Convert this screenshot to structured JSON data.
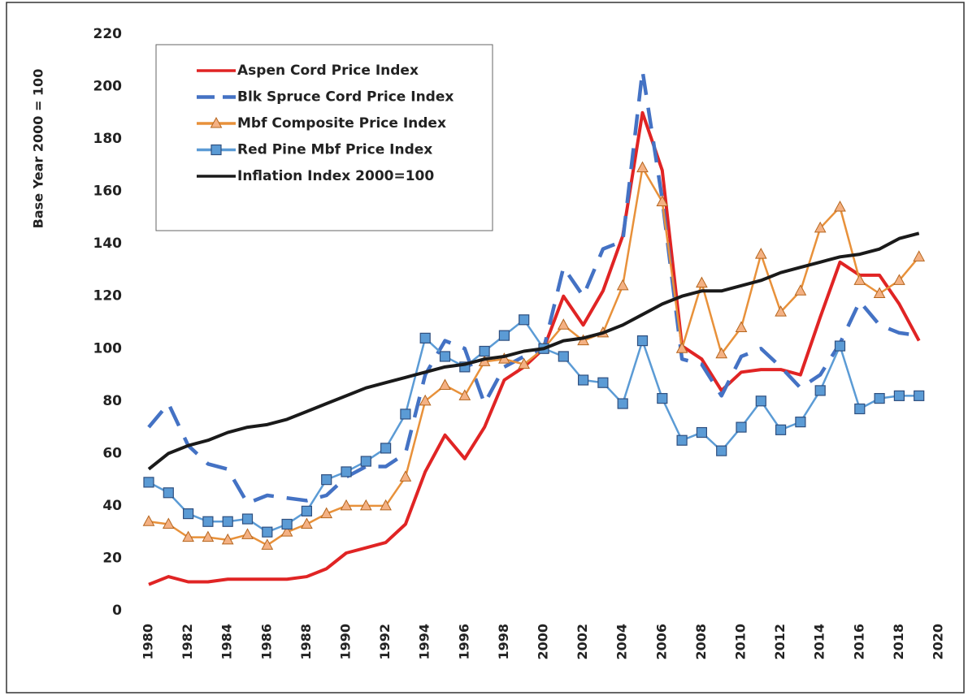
{
  "chart_data": {
    "type": "line",
    "y_label": "Base Year 2000 = 100",
    "x": [
      1980,
      1981,
      1982,
      1983,
      1984,
      1985,
      1986,
      1987,
      1988,
      1989,
      1990,
      1991,
      1992,
      1993,
      1994,
      1995,
      1996,
      1997,
      1998,
      1999,
      2000,
      2001,
      2002,
      2003,
      2004,
      2005,
      2006,
      2007,
      2008,
      2009,
      2010,
      2011,
      2012,
      2013,
      2014,
      2015,
      2016,
      2017,
      2018,
      2019
    ],
    "xlim": [
      1980,
      2020
    ],
    "xticks": [
      1980,
      1982,
      1984,
      1986,
      1988,
      1990,
      1992,
      1994,
      1996,
      1998,
      2000,
      2002,
      2004,
      2006,
      2008,
      2010,
      2012,
      2014,
      2016,
      2018,
      2020
    ],
    "ylim": [
      0,
      220
    ],
    "yticks": [
      0,
      20,
      40,
      60,
      80,
      100,
      120,
      140,
      160,
      180,
      200,
      220
    ],
    "legend": "upper-left",
    "series": [
      {
        "name": "Aspen Cord Price Index",
        "color": "#e02424",
        "line_style": "solid",
        "marker": "none",
        "values": [
          10,
          13,
          11,
          11,
          12,
          12,
          12,
          12,
          13,
          16,
          22,
          24,
          26,
          33,
          53,
          67,
          58,
          70,
          88,
          93,
          100,
          120,
          109,
          122,
          143,
          190,
          168,
          101,
          96,
          84,
          91,
          92,
          92,
          90,
          112,
          133,
          128,
          128,
          117,
          103
        ]
      },
      {
        "name": "Blk Spruce Cord Price Index",
        "color": "#4472c4",
        "line_style": "dashed",
        "marker": "none",
        "values": [
          70,
          79,
          63,
          56,
          54,
          41,
          44,
          43,
          42,
          44,
          51,
          55,
          55,
          60,
          90,
          103,
          100,
          79,
          93,
          97,
          100,
          131,
          120,
          138,
          141,
          206,
          157,
          96,
          94,
          82,
          97,
          100,
          93,
          85,
          90,
          102,
          118,
          109,
          106,
          105
        ]
      },
      {
        "name": "Mbf Composite Price Index",
        "color": "#e8913a",
        "line_style": "solid",
        "marker": "triangle",
        "values": [
          34,
          33,
          28,
          28,
          27,
          29,
          25,
          30,
          33,
          37,
          40,
          40,
          40,
          51,
          80,
          86,
          82,
          95,
          96,
          94,
          100,
          109,
          103,
          106,
          124,
          169,
          156,
          100,
          125,
          98,
          108,
          136,
          114,
          122,
          146,
          154,
          126,
          121,
          126,
          135
        ]
      },
      {
        "name": "Red Pine Mbf Price Index",
        "color": "#5b9bd5",
        "line_style": "solid",
        "marker": "square",
        "values": [
          49,
          45,
          37,
          34,
          34,
          35,
          30,
          33,
          38,
          50,
          53,
          57,
          62,
          75,
          104,
          97,
          93,
          99,
          105,
          111,
          100,
          97,
          88,
          87,
          79,
          103,
          81,
          65,
          68,
          61,
          70,
          80,
          69,
          72,
          84,
          101,
          77,
          81,
          82,
          82
        ]
      },
      {
        "name": "Inflation Index 2000=100",
        "color": "#1a1a1a",
        "line_style": "solid",
        "marker": "none",
        "values": [
          54,
          60,
          63,
          65,
          68,
          70,
          71,
          73,
          76,
          79,
          82,
          85,
          87,
          89,
          91,
          93,
          94,
          96,
          97,
          99,
          100,
          103,
          104,
          106,
          109,
          113,
          117,
          120,
          122,
          122,
          124,
          126,
          129,
          131,
          133,
          135,
          136,
          138,
          142,
          144
        ]
      }
    ]
  }
}
